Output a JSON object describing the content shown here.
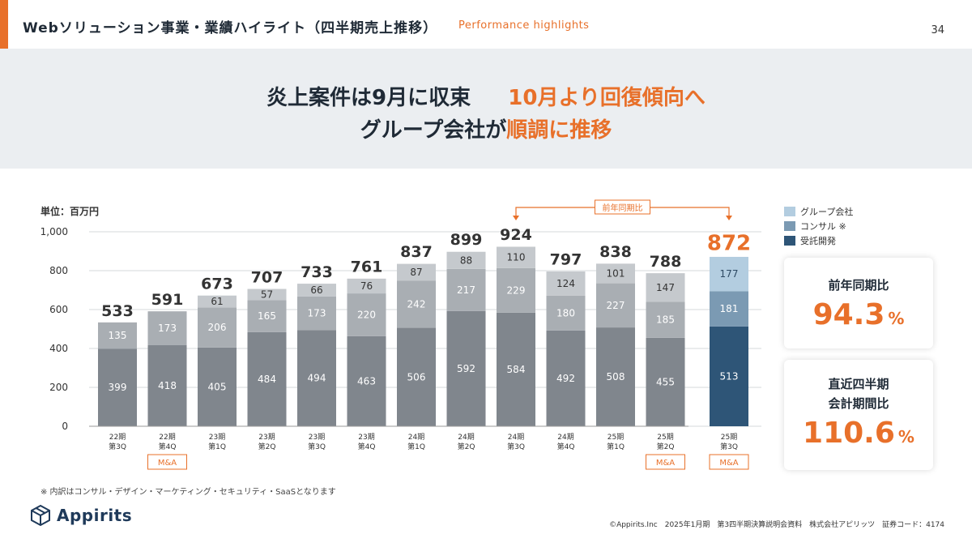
{
  "header": {
    "title": "Webソリューション事業・業績ハイライト（四半期売上推移）",
    "subtitle": "Performance highlights",
    "page_number": "34"
  },
  "hero": {
    "line1_a": "炎上案件は9月に収束",
    "line1_b": "10月より回復傾向へ",
    "line2_a": "グループ会社が",
    "line2_b": "順調に推移"
  },
  "unit_label": "単位：百万円",
  "legend": [
    {
      "label": "グループ会社",
      "color": "#b3cde0"
    },
    {
      "label": "コンサル ※",
      "color": "#7b9ab3"
    },
    {
      "label": "受託開発",
      "color": "#2e5577"
    }
  ],
  "kpi": {
    "yoy_label": "前年同期比",
    "yoy_value": "94.3",
    "yoy_unit": "%",
    "qoq_label_1": "直近四半期",
    "qoq_label_2": "会計期間比",
    "qoq_value": "110.6",
    "qoq_unit": "%"
  },
  "footnote": "※ 内訳はコンサル・デザイン・マーケティング・セキュリティ・SaaSとなります",
  "logo_text": "Appirits",
  "footer": "©Appirits.Inc　2025年1月期　第3四半期決算説明会資料　株式会社アピリッツ　証券コード：4174",
  "chart_data": {
    "type": "bar",
    "stacked": true,
    "ylim": [
      0,
      1000
    ],
    "yticks": [
      "0",
      "200",
      "400",
      "600",
      "800",
      "1,000"
    ],
    "categories": [
      [
        "22期",
        "第3Q"
      ],
      [
        "22期",
        "第4Q"
      ],
      [
        "23期",
        "第1Q"
      ],
      [
        "23期",
        "第2Q"
      ],
      [
        "23期",
        "第3Q"
      ],
      [
        "23期",
        "第4Q"
      ],
      [
        "24期",
        "第1Q"
      ],
      [
        "24期",
        "第2Q"
      ],
      [
        "24期",
        "第3Q"
      ],
      [
        "24期",
        "第4Q"
      ],
      [
        "25期",
        "第1Q"
      ],
      [
        "25期",
        "第2Q"
      ],
      [
        "25期",
        "第3Q"
      ]
    ],
    "series": [
      {
        "name": "受託開発",
        "values": [
          399,
          418,
          405,
          484,
          494,
          463,
          506,
          592,
          584,
          492,
          508,
          455,
          513
        ]
      },
      {
        "name": "コンサル",
        "values": [
          135,
          173,
          206,
          165,
          173,
          220,
          242,
          217,
          229,
          180,
          227,
          185,
          181
        ]
      },
      {
        "name": "グループ会社",
        "values": [
          null,
          null,
          61,
          57,
          66,
          76,
          87,
          88,
          110,
          124,
          101,
          147,
          177
        ]
      }
    ],
    "totals": [
      533,
      591,
      673,
      707,
      733,
      761,
      837,
      899,
      924,
      797,
      838,
      788,
      872
    ],
    "ma_badge_categories": [
      1,
      11,
      12
    ],
    "ma_label": "M&A",
    "highlight_category": 12,
    "comparison": {
      "from": 8,
      "to": 12,
      "label": "前年同期比"
    },
    "colors": {
      "past_base": "#80868d",
      "past_mid": "#a9aeb3",
      "past_top": "#c5c9cd",
      "current": [
        "#2e5577",
        "#7b9ab3",
        "#b3cde0"
      ],
      "accent": "#e8702a"
    }
  }
}
